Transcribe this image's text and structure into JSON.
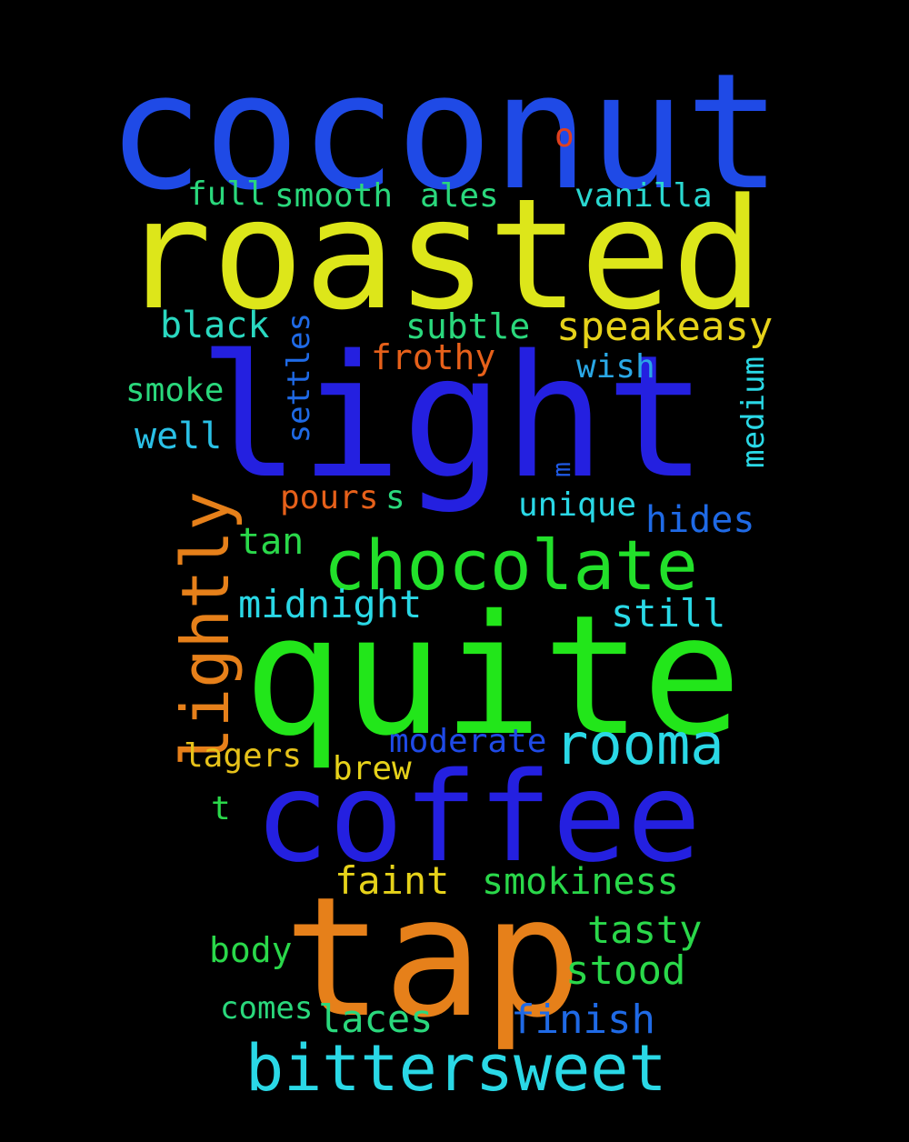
{
  "words": [
    {
      "text": "coconut",
      "color": "#1f4ae6"
    },
    {
      "text": "o",
      "color": "#e0401e"
    },
    {
      "text": "roasted",
      "color": "#dde61a"
    },
    {
      "text": "full",
      "color": "#2ad87c"
    },
    {
      "text": "smooth",
      "color": "#2ad87c"
    },
    {
      "text": "ales",
      "color": "#2ad87c"
    },
    {
      "text": "vanilla",
      "color": "#2ad8d0"
    },
    {
      "text": "black",
      "color": "#2ad8c0"
    },
    {
      "text": "subtle",
      "color": "#2ad87c"
    },
    {
      "text": "speakeasy",
      "color": "#e6d21a"
    },
    {
      "text": "settles",
      "color": "#1f6ae6"
    },
    {
      "text": "frothy",
      "color": "#e6601a"
    },
    {
      "text": "light",
      "color": "#2420e0"
    },
    {
      "text": "wish",
      "color": "#2aa8e6"
    },
    {
      "text": "smoke",
      "color": "#2ad87c"
    },
    {
      "text": "medium",
      "color": "#2ad8e6"
    },
    {
      "text": "well",
      "color": "#2ac0e6"
    },
    {
      "text": "m",
      "color": "#1f5ae6"
    },
    {
      "text": "lightly",
      "color": "#e6801a"
    },
    {
      "text": "pours",
      "color": "#e6601a"
    },
    {
      "text": "s",
      "color": "#2ad87c"
    },
    {
      "text": "unique",
      "color": "#2ad8e6"
    },
    {
      "text": "hides",
      "color": "#1f6ae6"
    },
    {
      "text": "tan",
      "color": "#2ad84a"
    },
    {
      "text": "chocolate",
      "color": "#22e02a"
    },
    {
      "text": "midnight",
      "color": "#2ad8e6"
    },
    {
      "text": "still",
      "color": "#2ad8e6"
    },
    {
      "text": "quite",
      "color": "#22e61a"
    },
    {
      "text": "rooma",
      "color": "#2ad8e6"
    },
    {
      "text": "moderate",
      "color": "#1f4ae6"
    },
    {
      "text": "lagers",
      "color": "#e6c21a"
    },
    {
      "text": "brew",
      "color": "#e6d21a"
    },
    {
      "text": "coffee",
      "color": "#2420e0"
    },
    {
      "text": "t",
      "color": "#2ad84a"
    },
    {
      "text": "faint",
      "color": "#e6d21a"
    },
    {
      "text": "smokiness",
      "color": "#2ad84a"
    },
    {
      "text": "tap",
      "color": "#e6801a"
    },
    {
      "text": "tasty",
      "color": "#2ad84a"
    },
    {
      "text": "body",
      "color": "#2ad84a"
    },
    {
      "text": "stood",
      "color": "#2ad84a"
    },
    {
      "text": "comes",
      "color": "#2ad87c"
    },
    {
      "text": "laces",
      "color": "#2ad87c"
    },
    {
      "text": "finish",
      "color": "#1f6ae6"
    },
    {
      "text": "bittersweet",
      "color": "#2ad8e6"
    }
  ]
}
